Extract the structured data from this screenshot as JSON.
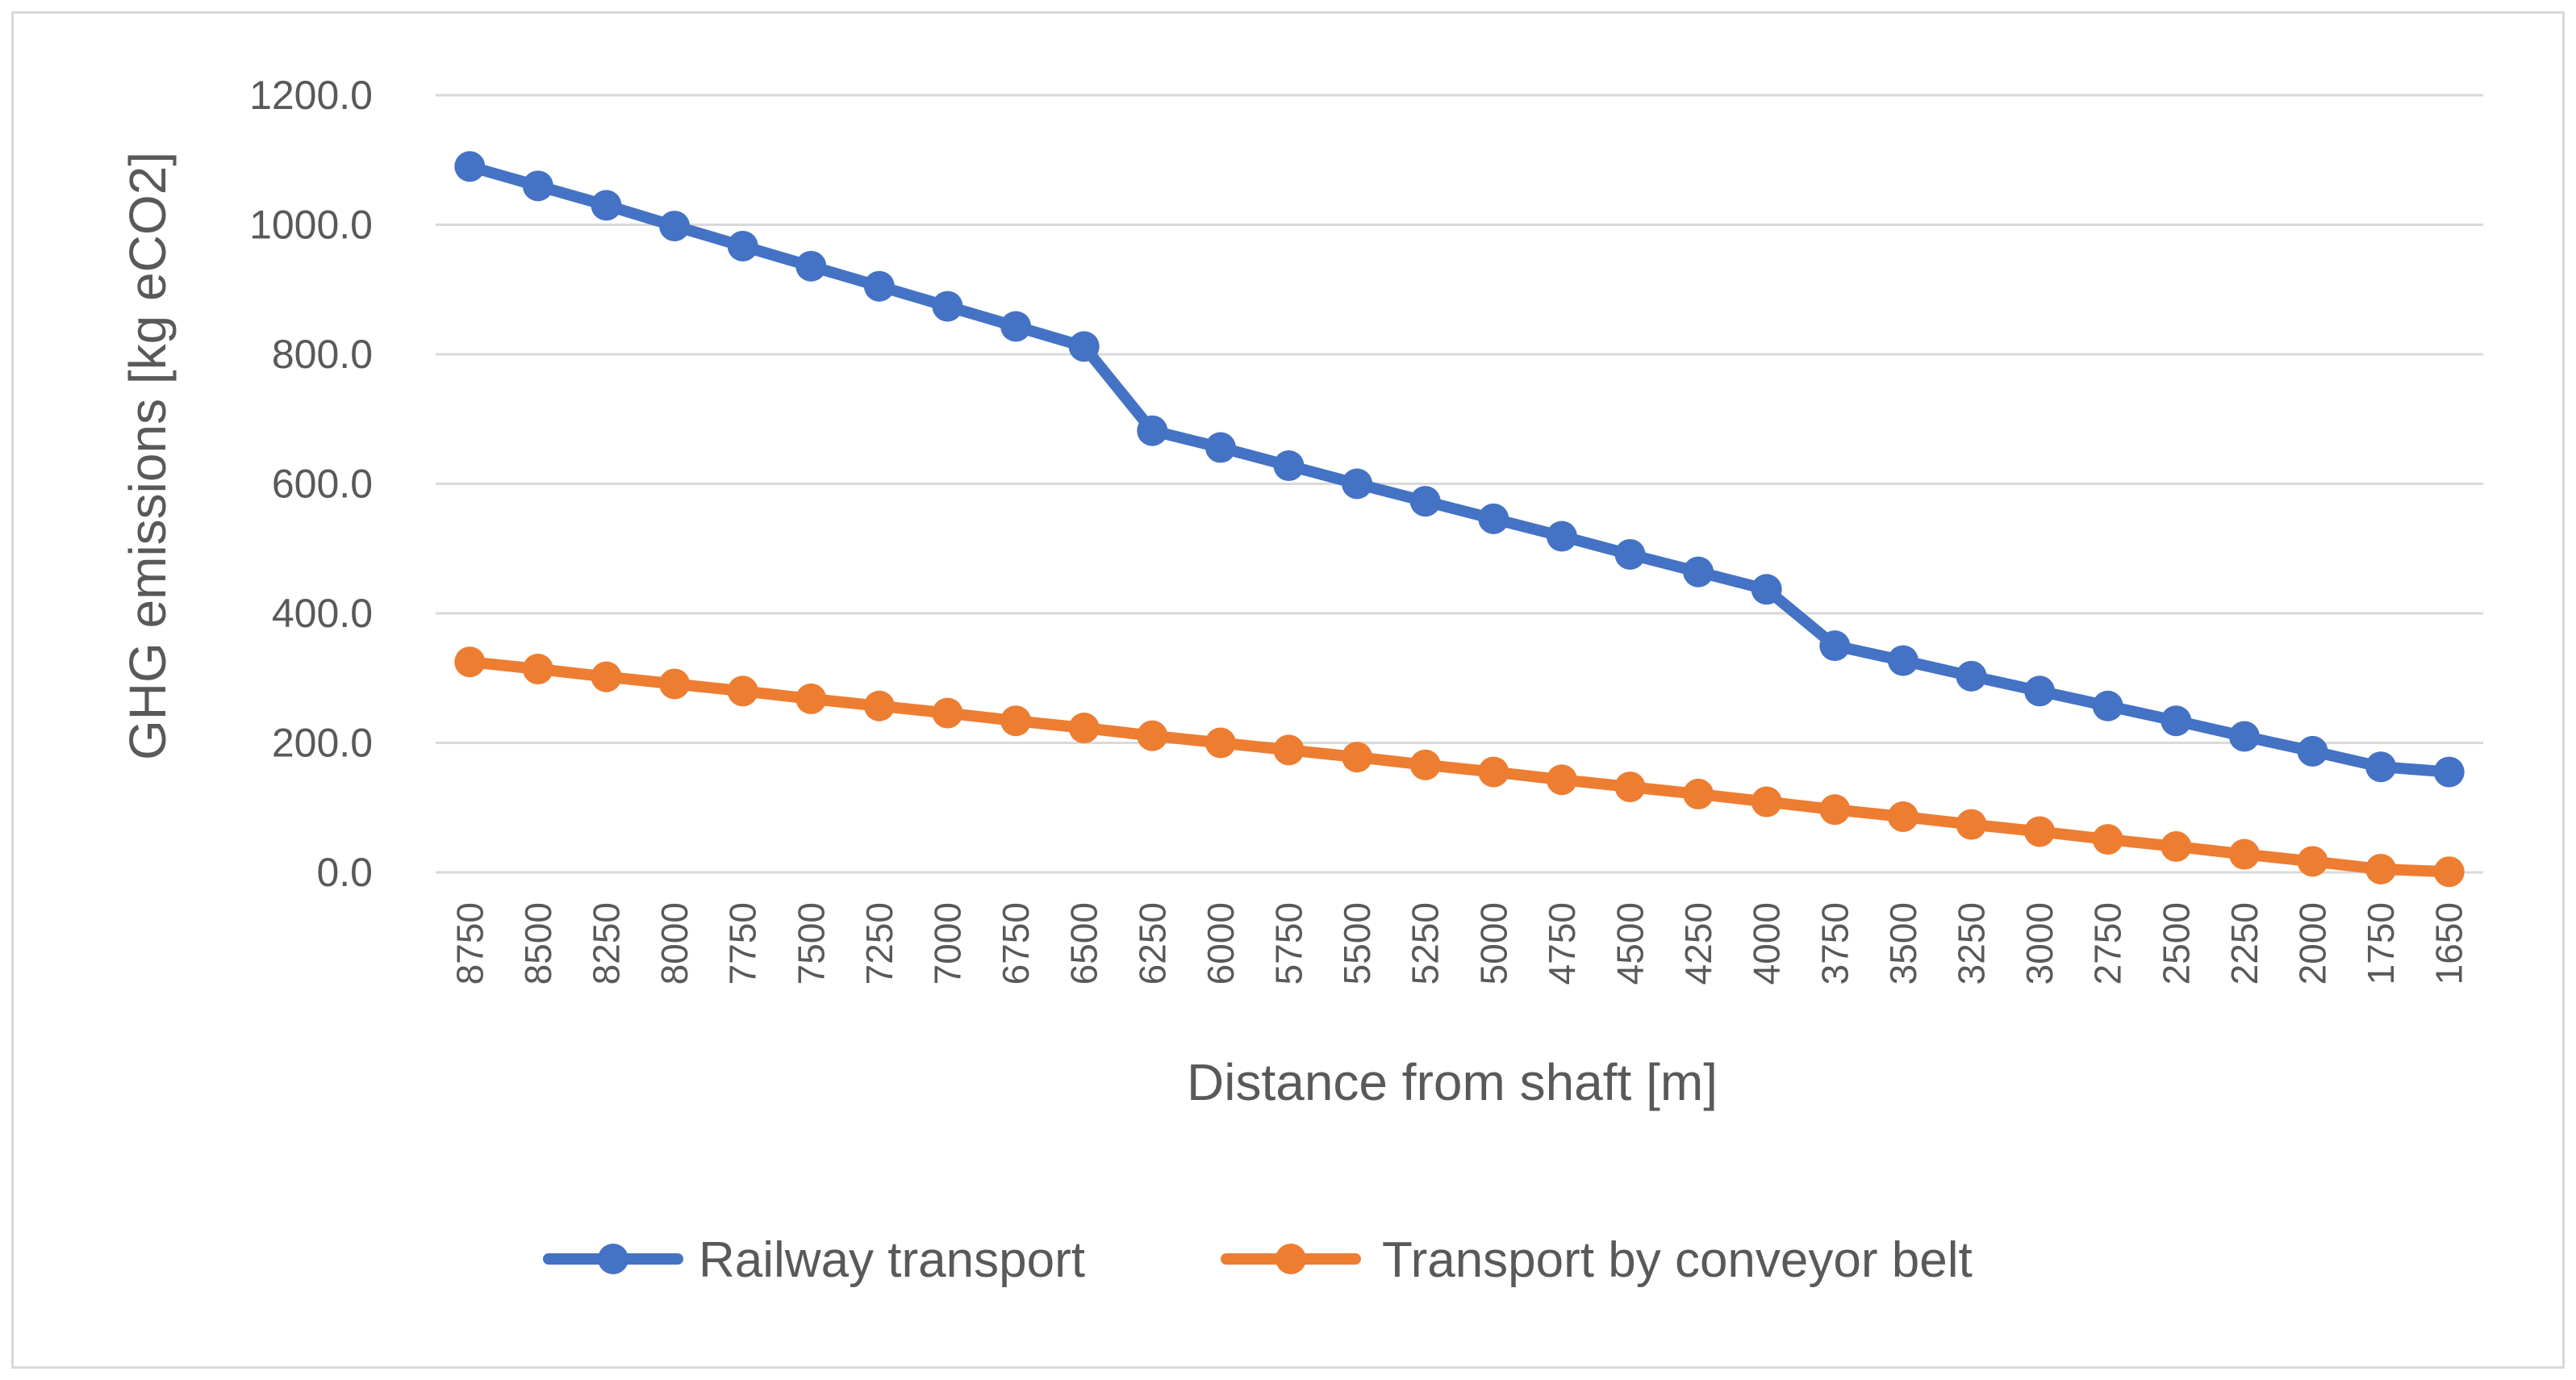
{
  "chart_data": {
    "type": "line",
    "title": "",
    "xlabel": "Distance  from shaft [m]",
    "ylabel": "GHG emissions [kg eCO2]",
    "ylim": [
      0,
      1200
    ],
    "yticks": [
      0,
      200,
      400,
      600,
      800,
      1000,
      1200
    ],
    "ytick_labels": [
      "0.0",
      "200.0",
      "400.0",
      "600.0",
      "800.0",
      "1000.0",
      "1200.0"
    ],
    "grid": true,
    "legend_position": "bottom",
    "categories": [
      "8750",
      "8500",
      "8250",
      "8000",
      "7750",
      "7500",
      "7250",
      "7000",
      "6750",
      "6500",
      "6250",
      "6000",
      "5750",
      "5500",
      "5250",
      "5000",
      "4750",
      "4500",
      "4250",
      "4000",
      "3750",
      "3500",
      "3250",
      "3000",
      "2750",
      "2500",
      "2250",
      "2000",
      "1750",
      "1650"
    ],
    "series": [
      {
        "name": "Railway transport",
        "color": "#4472c4",
        "values": [
          1090,
          1060,
          1030,
          998,
          967,
          936,
          905,
          874,
          843,
          812,
          682,
          656,
          628,
          600,
          573,
          546,
          519,
          491,
          464,
          437,
          350,
          327,
          303,
          280,
          257,
          234,
          210,
          187,
          163,
          155
        ]
      },
      {
        "name": "Transport by conveyor belt",
        "color": "#ed7d31",
        "values": [
          325,
          314,
          302,
          291,
          280,
          268,
          257,
          246,
          234,
          223,
          211,
          200,
          189,
          178,
          166,
          155,
          143,
          132,
          121,
          109,
          97,
          86,
          74,
          63,
          51,
          40,
          28,
          17,
          5,
          1
        ]
      }
    ]
  }
}
